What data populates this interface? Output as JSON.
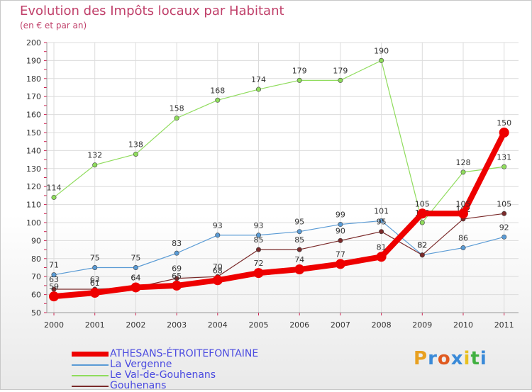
{
  "title": "Evolution des Impôts locaux par Habitant",
  "subtitle": "(en € et par an)",
  "logo": {
    "text": "Proxiti",
    "colors": [
      "#e8a020",
      "#3a8ad8",
      "#e05a20",
      "#3a8ad8",
      "#e8c020",
      "#40b040",
      "#3a8ad8"
    ]
  },
  "chart_data": {
    "type": "line",
    "x": [
      2000,
      2001,
      2002,
      2003,
      2004,
      2005,
      2006,
      2007,
      2008,
      2009,
      2010,
      2011
    ],
    "ylim": [
      50,
      200
    ],
    "yticks": [
      50,
      60,
      70,
      80,
      90,
      100,
      110,
      120,
      130,
      140,
      150,
      160,
      170,
      180,
      190,
      200
    ],
    "grid": true,
    "legend_position": "bottom-left",
    "series": [
      {
        "name": "ATHESANS-ÉTROITEFONTAINE",
        "color": "#ee0000",
        "values": [
          59,
          61,
          64,
          65,
          68,
          72,
          74,
          77,
          81,
          105,
          105,
          150
        ]
      },
      {
        "name": "La Vergenne",
        "color": "#5a9bd5",
        "values": [
          71,
          75,
          75,
          83,
          93,
          93,
          95,
          99,
          101,
          82,
          86,
          92
        ]
      },
      {
        "name": "Le Val-de-Gouhenans",
        "color": "#8fdc5c",
        "values": [
          114,
          132,
          138,
          158,
          168,
          174,
          179,
          179,
          190,
          100,
          128,
          131
        ]
      },
      {
        "name": "Gouhenans",
        "color": "#7a2a2a",
        "values": [
          63,
          63,
          64,
          69,
          70,
          85,
          85,
          90,
          95,
          82,
          102,
          105
        ]
      }
    ]
  }
}
